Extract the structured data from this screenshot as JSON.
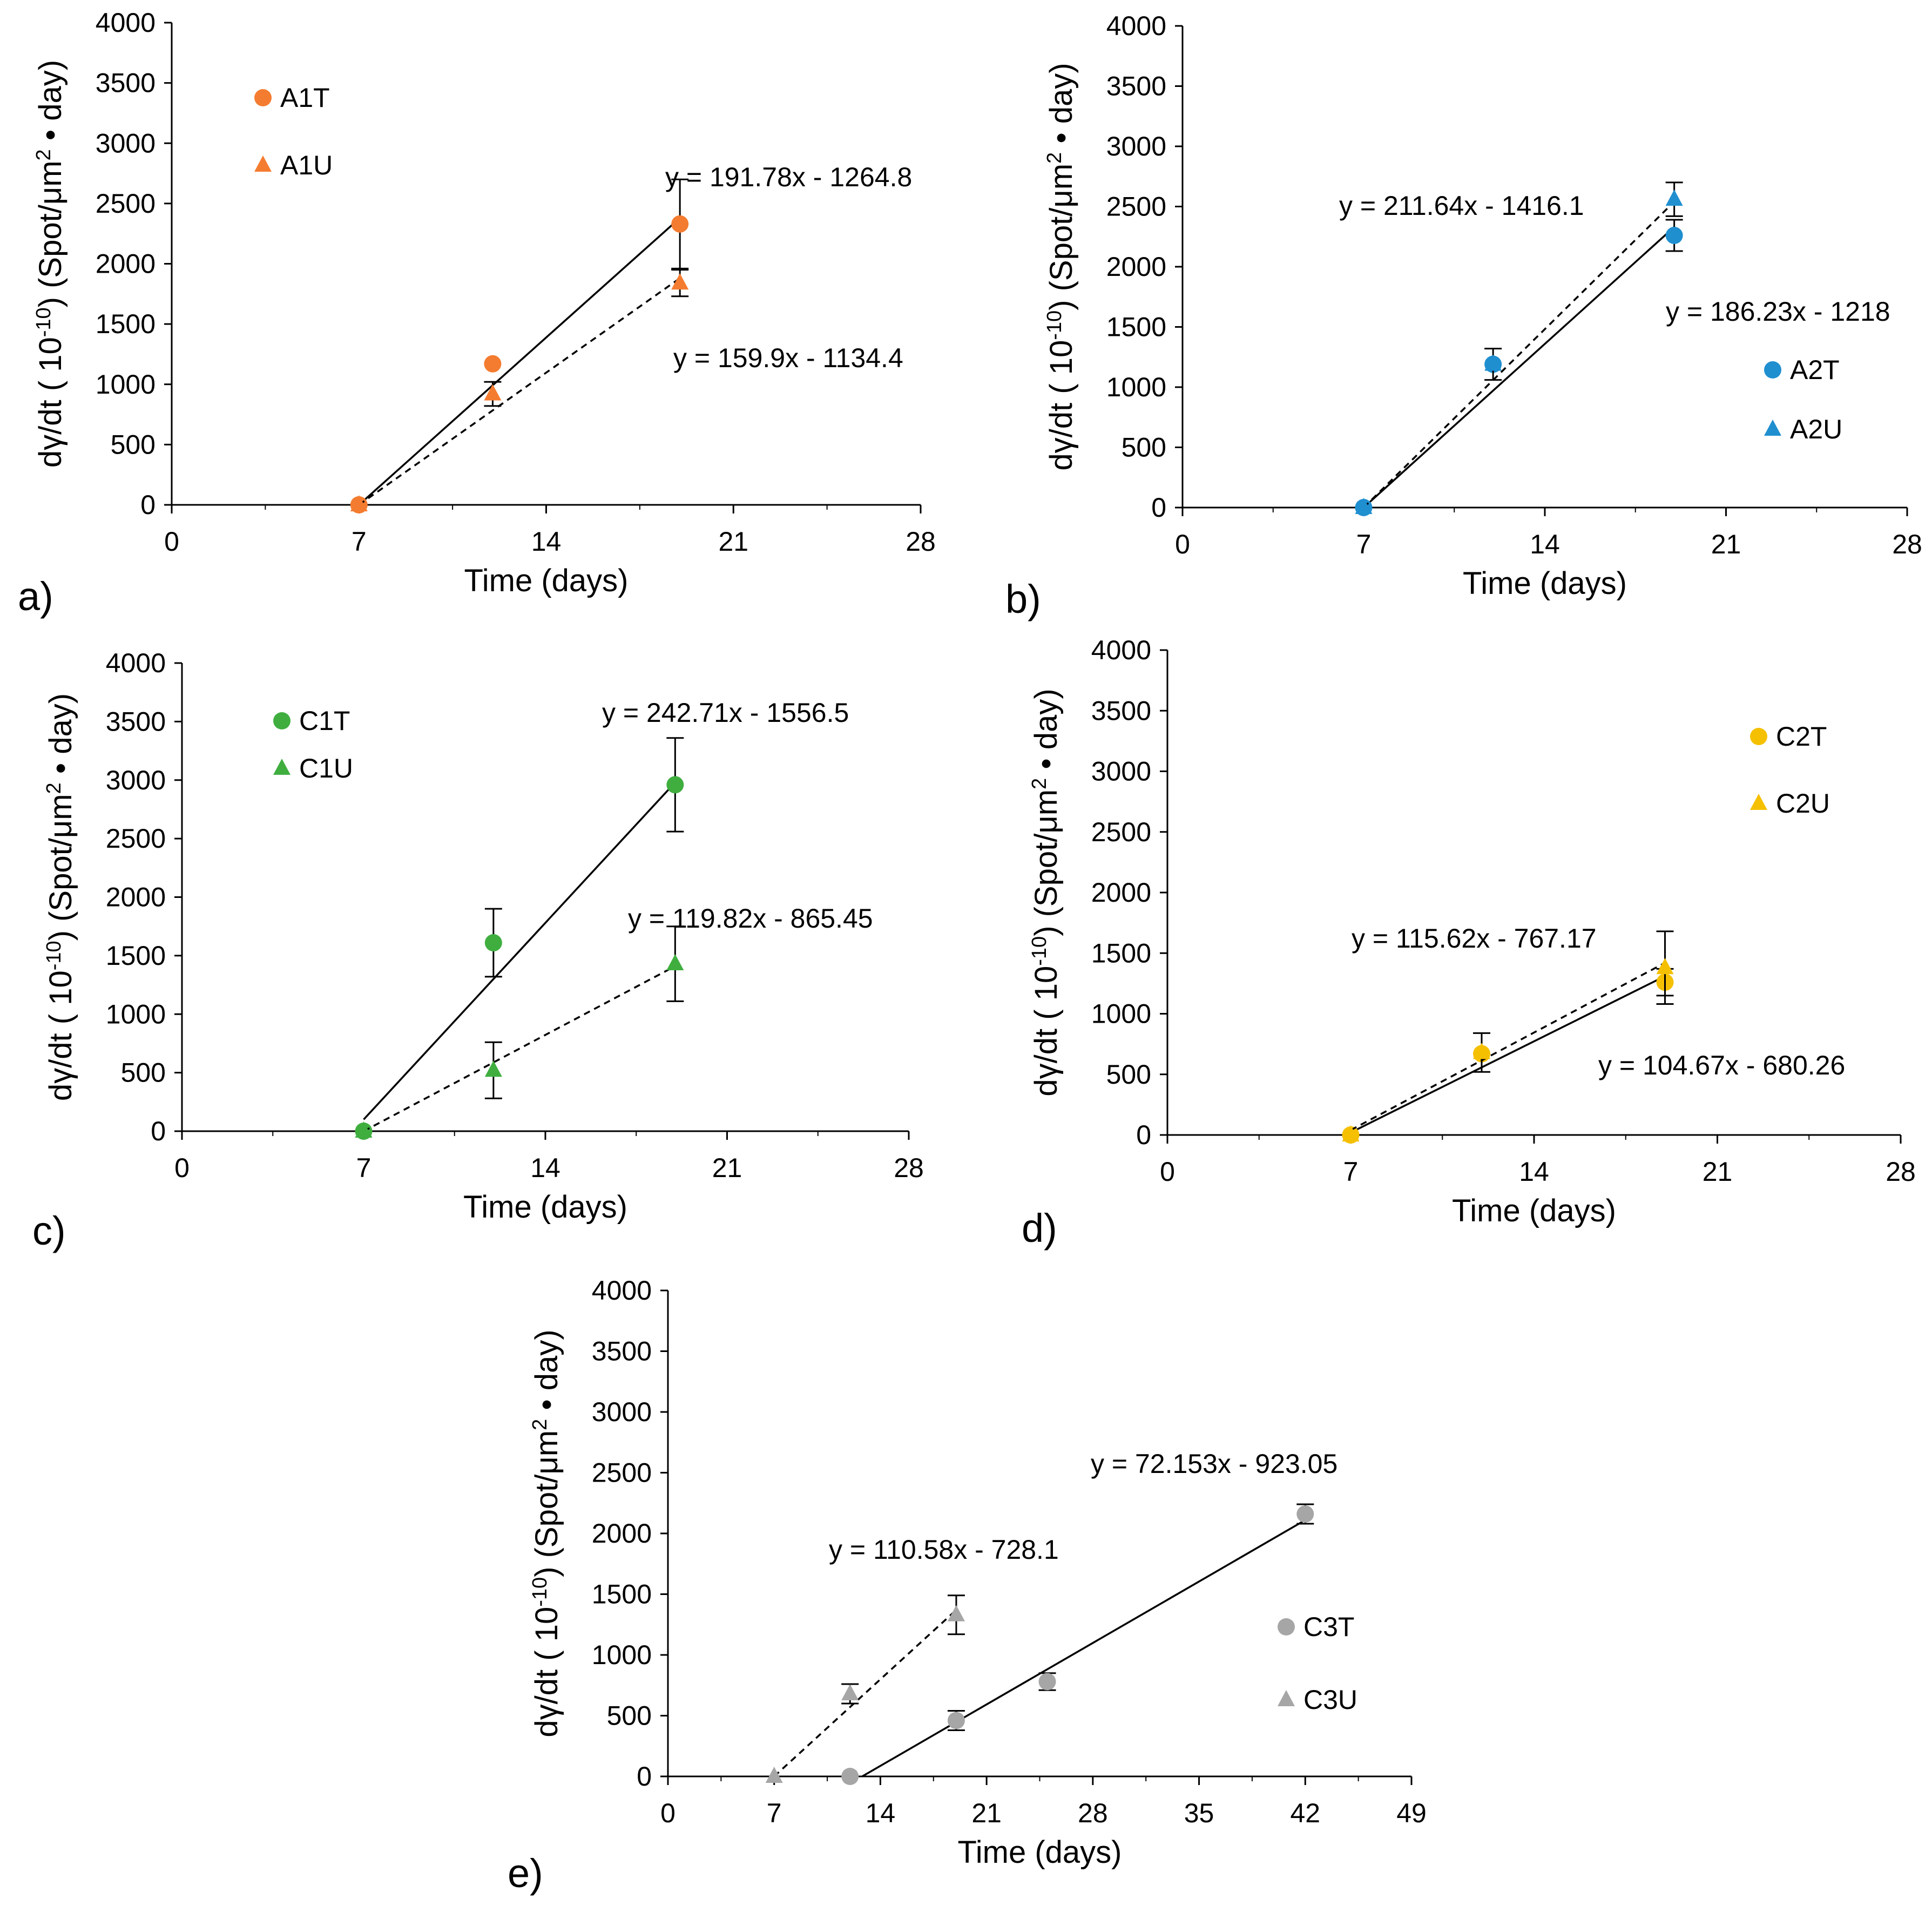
{
  "chart_data": [
    {
      "type": "scatter",
      "panel_label": "a)",
      "xlabel": "Time (days)",
      "ylabel": "dγ/dt ( 10-10) (Spot/μm2 • day)",
      "ylabel_parts": {
        "a": "dγ/dt ( 10",
        "b": "-10",
        "c": ") (Spot/μm",
        "d": "2",
        "e": " • day)"
      },
      "xlim": [
        0,
        28
      ],
      "ylim": [
        0,
        4000
      ],
      "xticks": [
        0,
        7,
        14,
        21,
        28
      ],
      "yticks": [
        0,
        500,
        1000,
        1500,
        2000,
        2500,
        3000,
        3500,
        4000
      ],
      "series": [
        {
          "name": "A1T",
          "marker": "circle",
          "color": "#F47C30",
          "x": [
            7,
            12,
            19
          ],
          "y": [
            0,
            1170,
            2330
          ],
          "err": [
            0,
            0,
            370
          ],
          "fit": {
            "style": "solid",
            "x": [
              7,
              19
            ],
            "y": [
              0,
              2380
            ]
          }
        },
        {
          "name": "A1U",
          "marker": "triangle",
          "color": "#F47C30",
          "x": [
            7,
            12,
            19
          ],
          "y": [
            0,
            920,
            1840
          ],
          "err": [
            0,
            100,
            110
          ],
          "fit": {
            "style": "dashed",
            "x": [
              7,
              19
            ],
            "y": [
              0,
              1880
            ]
          }
        }
      ],
      "equations": [
        "y = 191.78x - 1264.8",
        "y = 159.9x - 1134.4"
      ]
    },
    {
      "type": "scatter",
      "panel_label": "b)",
      "xlabel": "Time (days)",
      "ylabel": "dγ/dt ( 10-10) (Spot/μm2 • day)",
      "ylabel_parts": {
        "a": "dγ/dt ( 10",
        "b": "-10",
        "c": ") (Spot/μm",
        "d": "2",
        "e": " • day)"
      },
      "xlim": [
        0,
        28
      ],
      "ylim": [
        0,
        4000
      ],
      "xticks": [
        0,
        7,
        14,
        21,
        28
      ],
      "yticks": [
        0,
        500,
        1000,
        1500,
        2000,
        2500,
        3000,
        3500,
        4000
      ],
      "series": [
        {
          "name": "A2T",
          "marker": "circle",
          "color": "#1F8FD0",
          "x": [
            7,
            12,
            19
          ],
          "y": [
            0,
            1190,
            2260
          ],
          "err": [
            0,
            0,
            130
          ],
          "fit": {
            "style": "solid",
            "x": [
              7,
              19
            ],
            "y": [
              0,
              2330
            ]
          }
        },
        {
          "name": "A2U",
          "marker": "triangle",
          "color": "#1F8FD0",
          "x": [
            7,
            12,
            19
          ],
          "y": [
            0,
            1190,
            2560
          ],
          "err": [
            0,
            130,
            140
          ],
          "fit": {
            "style": "dashed",
            "x": [
              7,
              19
            ],
            "y": [
              0,
              2540
            ]
          }
        }
      ],
      "equations": [
        "y = 211.64x - 1416.1",
        "y = 186.23x - 1218"
      ]
    },
    {
      "type": "scatter",
      "panel_label": "c)",
      "xlabel": "Time (days)",
      "ylabel": "dγ/dt ( 10-10) (Spot/μm2 • day)",
      "ylabel_parts": {
        "a": "dγ/dt ( 10",
        "b": "-10",
        "c": ") (Spot/μm",
        "d": "2",
        "e": " • day)"
      },
      "xlim": [
        0,
        28
      ],
      "ylim": [
        0,
        4000
      ],
      "xticks": [
        0,
        7,
        14,
        21,
        28
      ],
      "yticks": [
        0,
        500,
        1000,
        1500,
        2000,
        2500,
        3000,
        3500,
        4000
      ],
      "series": [
        {
          "name": "C1T",
          "marker": "circle",
          "color": "#3FAE3F",
          "x": [
            7,
            12,
            19
          ],
          "y": [
            0,
            1610,
            2960
          ],
          "err": [
            0,
            290,
            400
          ],
          "fit": {
            "style": "solid",
            "x": [
              7,
              19
            ],
            "y": [
              100,
              2980
            ]
          }
        },
        {
          "name": "C1U",
          "marker": "triangle",
          "color": "#3FAE3F",
          "x": [
            7,
            12,
            19
          ],
          "y": [
            0,
            520,
            1430
          ],
          "err": [
            0,
            240,
            320
          ],
          "fit": {
            "style": "dashed",
            "x": [
              7,
              19
            ],
            "y": [
              0,
              1410
            ]
          }
        }
      ],
      "equations": [
        "y = 242.71x - 1556.5",
        "y = 119.82x - 865.45"
      ]
    },
    {
      "type": "scatter",
      "panel_label": "d)",
      "xlabel": "Time (days)",
      "ylabel": "dγ/dt ( 10-10) (Spot/μm2 • day)",
      "ylabel_parts": {
        "a": "dγ/dt ( 10",
        "b": "-10",
        "c": ") (Spot/μm",
        "d": "2",
        "e": " • day)"
      },
      "xlim": [
        0,
        28
      ],
      "ylim": [
        0,
        4000
      ],
      "xticks": [
        0,
        7,
        14,
        21,
        28
      ],
      "yticks": [
        0,
        500,
        1000,
        1500,
        2000,
        2500,
        3000,
        3500,
        4000
      ],
      "series": [
        {
          "name": "C2T",
          "marker": "circle",
          "color": "#F5C000",
          "x": [
            7,
            12,
            19
          ],
          "y": [
            0,
            670,
            1260
          ],
          "err": [
            0,
            0,
            110
          ],
          "fit": {
            "style": "solid",
            "x": [
              7,
              19
            ],
            "y": [
              20,
              1310
            ]
          }
        },
        {
          "name": "C2U",
          "marker": "triangle",
          "color": "#F5C000",
          "x": [
            7,
            12,
            19
          ],
          "y": [
            0,
            680,
            1380
          ],
          "err": [
            0,
            160,
            300
          ],
          "fit": {
            "style": "dashed",
            "x": [
              7,
              19
            ],
            "y": [
              40,
              1420
            ]
          }
        }
      ],
      "equations": [
        "y = 115.62x - 767.17",
        "y = 104.67x - 680.26"
      ]
    },
    {
      "type": "scatter",
      "panel_label": "e)",
      "xlabel": "Time (days)",
      "ylabel": "dγ/dt ( 10-10) (Spot/μm2 • day)",
      "ylabel_parts": {
        "a": "dγ/dt ( 10",
        "b": "-10",
        "c": ") (Spot/μm",
        "d": "2",
        "e": " • day)"
      },
      "xlim": [
        0,
        49
      ],
      "ylim": [
        0,
        4000
      ],
      "xticks": [
        0,
        7,
        14,
        21,
        28,
        35,
        42,
        49
      ],
      "yticks": [
        0,
        500,
        1000,
        1500,
        2000,
        2500,
        3000,
        3500,
        4000
      ],
      "series": [
        {
          "name": "C3T",
          "marker": "circle",
          "color": "#A6A6A6",
          "x": [
            12,
            19,
            25,
            42
          ],
          "y": [
            0,
            460,
            780,
            2160
          ],
          "err": [
            0,
            80,
            70,
            80
          ],
          "fit": {
            "style": "solid",
            "x": [
              12.8,
              42
            ],
            "y": [
              0,
              2110
            ]
          }
        },
        {
          "name": "C3U",
          "marker": "triangle",
          "color": "#A6A6A6",
          "x": [
            7,
            12,
            19
          ],
          "y": [
            0,
            680,
            1330
          ],
          "err": [
            0,
            80,
            160
          ],
          "fit": {
            "style": "dashed",
            "x": [
              7,
              19
            ],
            "y": [
              0,
              1370
            ]
          }
        }
      ],
      "equations": [
        "y = 72.153x - 923.05",
        "y = 110.58x - 728.1"
      ]
    }
  ]
}
